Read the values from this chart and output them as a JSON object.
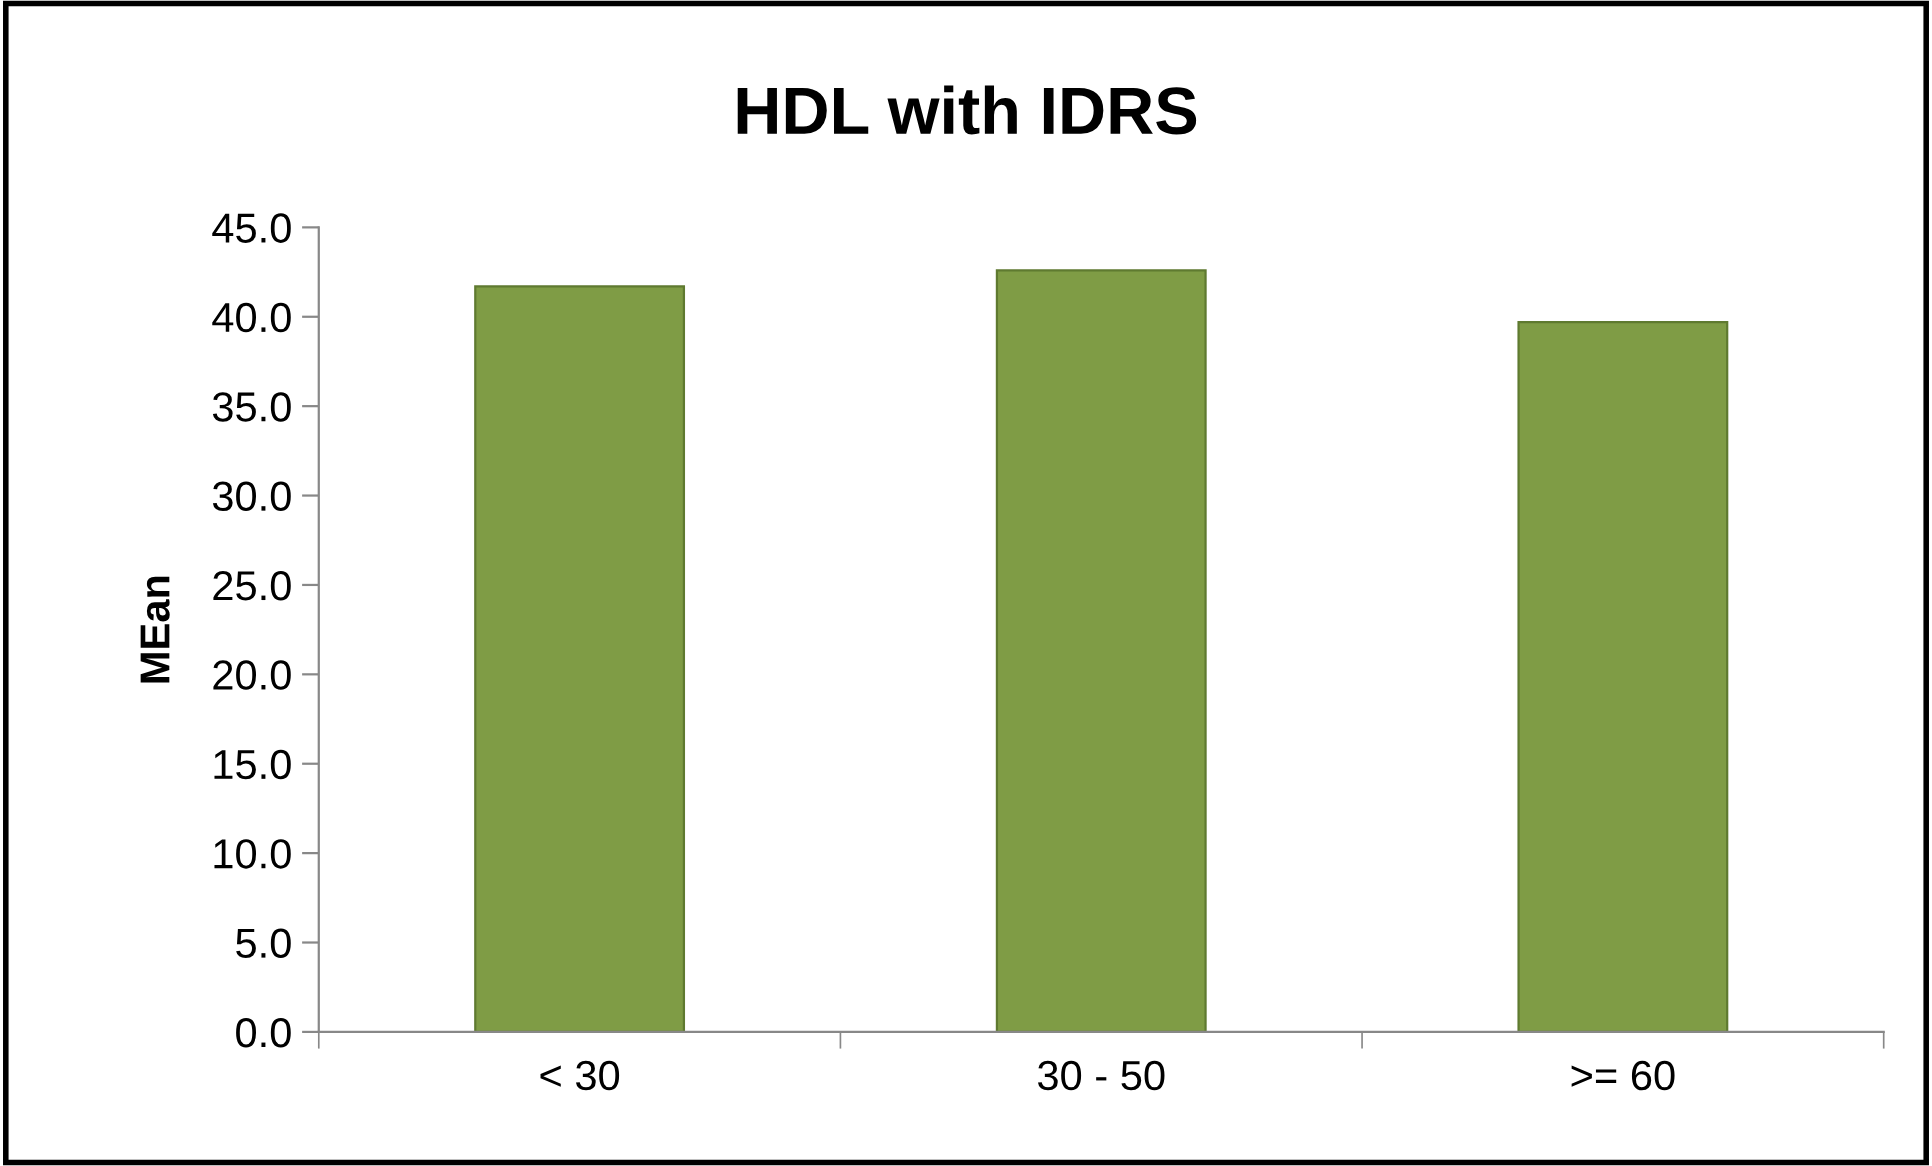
{
  "chart_data": {
    "type": "bar",
    "title": "HDL with IDRS",
    "ylabel": "MEan",
    "categories": [
      "< 30",
      "30 - 50",
      ">= 60"
    ],
    "values": [
      41.7,
      42.6,
      39.7
    ],
    "color": "#7f9c45",
    "ylim": [
      0,
      45
    ],
    "yticks": [
      {
        "value": 0,
        "label": "0.0"
      },
      {
        "value": 5,
        "label": "5.0"
      },
      {
        "value": 10,
        "label": "10.0"
      },
      {
        "value": 15,
        "label": "15.0"
      },
      {
        "value": 20,
        "label": "20.0"
      },
      {
        "value": 25,
        "label": "25.0"
      },
      {
        "value": 30,
        "label": "30.0"
      },
      {
        "value": 35,
        "label": "35.0"
      },
      {
        "value": 40,
        "label": "40.0"
      },
      {
        "value": 45,
        "label": "45.0"
      }
    ],
    "grid": false,
    "legend": false
  }
}
